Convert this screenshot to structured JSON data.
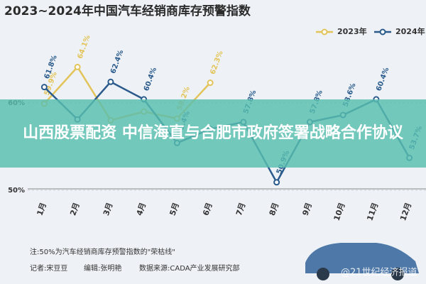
{
  "chart_data": {
    "type": "line",
    "title": "2023~2024年中国汽车经销商库存预警指数",
    "categories": [
      "1月",
      "2月",
      "3月",
      "4月",
      "5月",
      "6月",
      "7月",
      "8月",
      "9月",
      "10月",
      "11月",
      "12月"
    ],
    "series": [
      {
        "name": "2023年",
        "color": "#e3c45a",
        "values": [
          59.9,
          64.1,
          58.0,
          59.0,
          58.2,
          62.3,
          null,
          null,
          null,
          null,
          null,
          null
        ],
        "value_labels": [
          "59.9%",
          "64.1%",
          null,
          null,
          "58.2%",
          "62.3%",
          null,
          null,
          null,
          null,
          null,
          null
        ]
      },
      {
        "name": "2024年",
        "color": "#2a5b8c",
        "values": [
          61.8,
          58.1,
          62.4,
          60.4,
          55.4,
          57.0,
          57.8,
          50.9,
          57.8,
          58.6,
          60.4,
          53.7
        ],
        "value_labels": [
          "61.8%",
          null,
          "62.4%",
          "60.4%",
          "55.4%",
          null,
          "57.8%",
          "50.9%",
          "57.8%",
          "58.6%",
          "60.4%",
          "53.7%"
        ]
      }
    ],
    "ylim": [
      49.5,
      66
    ],
    "yticks": [
      {
        "value": 50,
        "label": "50%"
      },
      {
        "value": 60,
        "label": "60%"
      }
    ],
    "legend": "top-right",
    "note": "注:50%为汽车经销商库存预警指数的\"荣枯线\"",
    "credits": [
      "记者:宋豆豆",
      "编辑:张明艳",
      "数据来源:CADA产业发展研究部"
    ],
    "watermark": "@21世纪经济报道",
    "banner": "山西股票配资 中信海直与合肥市政府签署战略合作协议"
  }
}
